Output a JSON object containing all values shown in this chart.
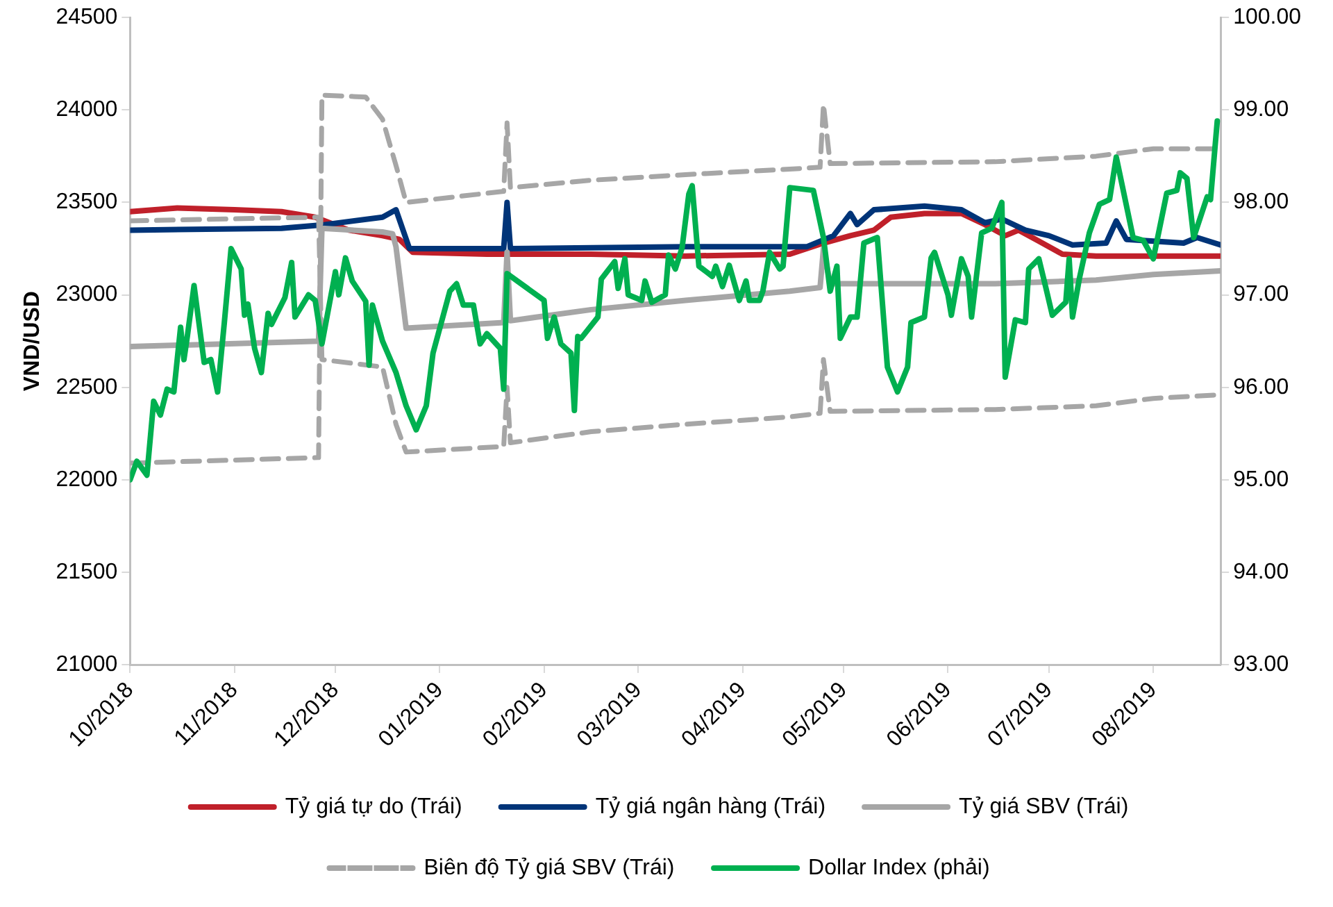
{
  "chart_data": {
    "type": "line",
    "ylabel": "VND/USD",
    "legend": "bottom",
    "grid": false,
    "marker": "none",
    "xlim": [
      "2018-10-01",
      "2019-08-21"
    ],
    "xticks": [
      {
        "value": "2018-10-01",
        "label": "10/2018"
      },
      {
        "value": "2018-11-01",
        "label": "11/2018"
      },
      {
        "value": "2018-12-01",
        "label": "12/2018"
      },
      {
        "value": "2019-01-01",
        "label": "01/2019"
      },
      {
        "value": "2019-02-01",
        "label": "02/2019"
      },
      {
        "value": "2019-03-01",
        "label": "03/2019"
      },
      {
        "value": "2019-04-01",
        "label": "04/2019"
      },
      {
        "value": "2019-05-01",
        "label": "05/2019"
      },
      {
        "value": "2019-06-01",
        "label": "06/2019"
      },
      {
        "value": "2019-07-01",
        "label": "07/2019"
      },
      {
        "value": "2019-08-01",
        "label": "08/2019"
      }
    ],
    "ylim": [
      21000,
      24500
    ],
    "yticks": [
      21000,
      21500,
      22000,
      22500,
      23000,
      23500,
      24000,
      24500
    ],
    "y2lim": [
      93,
      100
    ],
    "y2ticks": [
      {
        "value": 93,
        "label": "93.00"
      },
      {
        "value": 94,
        "label": "94.00"
      },
      {
        "value": 95,
        "label": "95.00"
      },
      {
        "value": 96,
        "label": "96.00"
      },
      {
        "value": 97,
        "label": "97.00"
      },
      {
        "value": 98,
        "label": "98.00"
      },
      {
        "value": 99,
        "label": "99.00"
      },
      {
        "value": 100,
        "label": "100.00"
      }
    ],
    "series": [
      {
        "name": "Tỷ giá tự do (Trái)",
        "color": "#c0202a",
        "x": [
          "2018-10-01",
          "2018-10-15",
          "2018-11-01",
          "2018-11-15",
          "2018-11-25",
          "2018-12-05",
          "2018-12-15",
          "2018-12-20",
          "2018-12-24",
          "2019-01-15",
          "2019-02-15",
          "2019-03-15",
          "2019-04-15",
          "2019-04-25",
          "2019-05-03",
          "2019-05-10",
          "2019-05-15",
          "2019-05-25",
          "2019-06-05",
          "2019-06-12",
          "2019-06-18",
          "2019-06-22",
          "2019-06-28",
          "2019-07-05",
          "2019-07-15",
          "2019-08-21"
        ],
        "values": [
          23450,
          23470,
          23460,
          23450,
          23420,
          23350,
          23320,
          23300,
          23230,
          23220,
          23220,
          23210,
          23220,
          23280,
          23320,
          23350,
          23420,
          23440,
          23440,
          23380,
          23320,
          23350,
          23290,
          23220,
          23210,
          23210
        ]
      },
      {
        "name": "Tỷ giá ngân hàng (Trái)",
        "color": "#003478",
        "x": [
          "2018-10-01",
          "2018-11-15",
          "2018-11-28",
          "2018-12-15",
          "2018-12-19",
          "2018-12-23",
          "2019-01-20",
          "2019-01-21",
          "2019-01-22",
          "2019-03-15",
          "2019-04-20",
          "2019-04-28",
          "2019-05-03",
          "2019-05-05",
          "2019-05-10",
          "2019-05-25",
          "2019-06-05",
          "2019-06-12",
          "2019-06-17",
          "2019-06-24",
          "2019-07-01",
          "2019-07-08",
          "2019-07-18",
          "2019-07-21",
          "2019-07-24",
          "2019-08-10",
          "2019-08-14",
          "2019-08-21"
        ],
        "values": [
          23350,
          23360,
          23380,
          23420,
          23460,
          23250,
          23250,
          23500,
          23250,
          23260,
          23260,
          23320,
          23440,
          23380,
          23460,
          23480,
          23460,
          23390,
          23410,
          23350,
          23320,
          23270,
          23280,
          23400,
          23300,
          23280,
          23310,
          23270
        ]
      },
      {
        "name": "Tỷ giá SBV (Trái)",
        "color": "#a6a6a6",
        "x": [
          "2018-10-01",
          "2018-11-26",
          "2018-11-27",
          "2018-12-15",
          "2018-12-18",
          "2018-12-19",
          "2018-12-22",
          "2019-01-20",
          "2019-01-21",
          "2019-01-22",
          "2019-02-15",
          "2019-03-15",
          "2019-04-15",
          "2019-04-24",
          "2019-04-25",
          "2019-04-27",
          "2019-06-15",
          "2019-07-15",
          "2019-08-01",
          "2019-08-21"
        ],
        "values": [
          22720,
          22750,
          23360,
          23340,
          23330,
          23260,
          22820,
          22850,
          23230,
          22860,
          22920,
          22970,
          23020,
          23040,
          23250,
          23060,
          23060,
          23080,
          23110,
          23130
        ]
      },
      {
        "name": "Biên độ Tỷ giá SBV (Trái)",
        "color": "#a6a6a6",
        "line_style": "dashed",
        "x": [
          "2018-10-01",
          "2018-11-26",
          "2018-11-27",
          "2018-12-10",
          "2018-12-15",
          "2018-12-19",
          "2018-12-22",
          "2019-01-20",
          "2019-01-21",
          "2019-01-22",
          "2019-02-15",
          "2019-03-15",
          "2019-04-15",
          "2019-04-24",
          "2019-04-25",
          "2019-04-27",
          "2019-06-15",
          "2019-07-15",
          "2019-08-01",
          "2019-08-21"
        ],
        "values": [
          22090,
          22120,
          24080,
          24070,
          23950,
          23700,
          23500,
          23560,
          23930,
          23580,
          23620,
          23650,
          23680,
          23690,
          24030,
          23710,
          23720,
          23750,
          23790,
          23790
        ]
      },
      {
        "color": "#a6a6a6",
        "line_style": "dashed",
        "x": [
          "2018-10-01",
          "2018-11-26",
          "2018-11-27",
          "2018-12-15",
          "2018-12-19",
          "2018-12-22",
          "2019-01-20",
          "2019-01-21",
          "2019-01-22",
          "2019-02-15",
          "2019-03-15",
          "2019-04-15",
          "2019-04-24",
          "2019-04-25",
          "2019-04-27",
          "2019-06-15",
          "2019-07-15",
          "2019-08-01",
          "2019-08-21"
        ],
        "values": [
          23400,
          23420,
          22650,
          22610,
          22300,
          22150,
          22180,
          22500,
          22200,
          22260,
          22300,
          22340,
          22360,
          22650,
          22370,
          22380,
          22400,
          22440,
          22460
        ]
      },
      {
        "name": "Dollar Index (phải)",
        "color": "#00b050",
        "axis": "y2",
        "x": [
          "2018-10-01",
          "2018-10-03",
          "2018-10-06",
          "2018-10-08",
          "2018-10-10",
          "2018-10-12",
          "2018-10-14",
          "2018-10-16",
          "2018-10-17",
          "2018-10-18",
          "2018-10-20",
          "2018-10-23",
          "2018-10-25",
          "2018-10-27",
          "2018-10-29",
          "2018-10-31",
          "2018-11-03",
          "2018-11-04",
          "2018-11-05",
          "2018-11-07",
          "2018-11-09",
          "2018-11-11",
          "2018-11-12",
          "2018-11-16",
          "2018-11-18",
          "2018-11-19",
          "2018-11-23",
          "2018-11-25",
          "2018-11-27",
          "2018-12-01",
          "2018-12-02",
          "2018-12-04",
          "2018-12-06",
          "2018-12-10",
          "2018-12-11",
          "2018-12-12",
          "2018-12-15",
          "2018-12-19",
          "2018-12-22",
          "2018-12-25",
          "2018-12-28",
          "2018-12-30",
          "2019-01-04",
          "2019-01-06",
          "2019-01-08",
          "2019-01-11",
          "2019-01-13",
          "2019-01-15",
          "2019-01-19",
          "2019-01-20",
          "2019-01-21",
          "2019-02-01",
          "2019-02-02",
          "2019-02-04",
          "2019-02-06",
          "2019-02-09",
          "2019-02-10",
          "2019-02-11",
          "2019-02-12",
          "2019-02-17",
          "2019-02-18",
          "2019-02-22",
          "2019-02-23",
          "2019-02-25",
          "2019-02-26",
          "2019-03-02",
          "2019-03-03",
          "2019-03-05",
          "2019-03-09",
          "2019-03-10",
          "2019-03-12",
          "2019-03-14",
          "2019-03-16",
          "2019-03-17",
          "2019-03-19",
          "2019-03-23",
          "2019-03-24",
          "2019-03-26",
          "2019-03-28",
          "2019-03-31",
          "2019-04-02",
          "2019-04-03",
          "2019-04-06",
          "2019-04-07",
          "2019-04-09",
          "2019-04-12",
          "2019-04-13",
          "2019-04-15",
          "2019-04-22",
          "2019-04-25",
          "2019-04-27",
          "2019-04-29",
          "2019-04-30",
          "2019-05-03",
          "2019-05-05",
          "2019-05-07",
          "2019-05-11",
          "2019-05-14",
          "2019-05-17",
          "2019-05-20",
          "2019-05-21",
          "2019-05-25",
          "2019-05-27",
          "2019-05-28",
          "2019-06-01",
          "2019-06-02",
          "2019-06-05",
          "2019-06-07",
          "2019-06-08",
          "2019-06-11",
          "2019-06-14",
          "2019-06-17",
          "2019-06-18",
          "2019-06-21",
          "2019-06-24",
          "2019-06-25",
          "2019-06-28",
          "2019-06-30",
          "2019-07-02",
          "2019-07-06",
          "2019-07-07",
          "2019-07-08",
          "2019-07-10",
          "2019-07-13",
          "2019-07-16",
          "2019-07-19",
          "2019-07-21",
          "2019-07-26",
          "2019-07-29",
          "2019-08-01",
          "2019-08-05",
          "2019-08-08",
          "2019-08-09",
          "2019-08-11",
          "2019-08-13",
          "2019-08-17",
          "2019-08-18",
          "2019-08-20"
        ],
        "values": [
          95.0,
          95.2,
          95.05,
          95.85,
          95.7,
          95.98,
          95.95,
          96.65,
          96.3,
          96.55,
          97.1,
          96.27,
          96.3,
          95.95,
          96.7,
          97.5,
          97.28,
          96.78,
          96.9,
          96.42,
          96.16,
          96.8,
          96.68,
          96.97,
          97.35,
          96.76,
          97.0,
          96.94,
          96.47,
          97.25,
          97.0,
          97.4,
          97.15,
          96.93,
          96.24,
          96.89,
          96.5,
          96.16,
          95.8,
          95.54,
          95.8,
          96.37,
          97.04,
          97.12,
          96.89,
          96.89,
          96.47,
          96.58,
          96.42,
          95.98,
          97.23,
          96.94,
          96.53,
          96.76,
          96.47,
          96.37,
          95.75,
          96.55,
          96.53,
          96.76,
          97.17,
          97.36,
          97.07,
          97.39,
          97.0,
          96.94,
          97.15,
          96.92,
          97.0,
          97.43,
          97.28,
          97.51,
          98.09,
          98.18,
          97.31,
          97.2,
          97.31,
          97.09,
          97.32,
          96.94,
          97.15,
          96.94,
          96.94,
          97.04,
          97.46,
          97.28,
          97.31,
          98.16,
          98.13,
          97.62,
          97.04,
          97.31,
          96.53,
          96.76,
          96.76,
          97.56,
          97.62,
          96.22,
          95.95,
          96.22,
          96.7,
          96.76,
          97.4,
          97.46,
          97.0,
          96.78,
          97.39,
          97.2,
          96.76,
          97.67,
          97.72,
          98.0,
          96.11,
          96.73,
          96.7,
          97.28,
          97.39,
          97.09,
          96.78,
          96.92,
          97.39,
          96.76,
          97.17,
          97.67,
          97.98,
          98.03,
          98.49,
          97.62,
          97.59,
          97.39,
          98.1,
          98.13,
          98.32,
          98.26,
          97.62,
          98.06,
          98.03,
          98.88
        ]
      }
    ]
  }
}
